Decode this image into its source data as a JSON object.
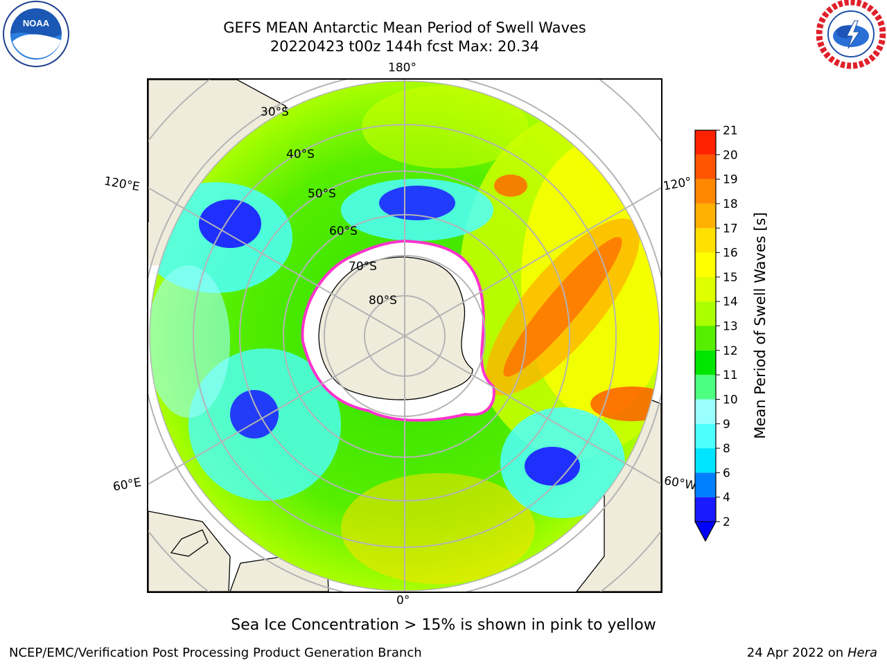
{
  "title_line1": "GEFS MEAN Antarctic Mean Period of Swell Waves",
  "title_line2": "20220423 t00z 144h fcst   Max: 20.34",
  "caption": "Sea Ice Concentration > 15% is shown in pink to yellow",
  "footer_left": "NCEP/EMC/Verification Post Processing Product Generation Branch",
  "footer_right_date": "24 Apr 2022 on",
  "footer_right_host": "Hera",
  "logos": {
    "left": "NOAA",
    "right": "NATIONAL WEATHER SERVICE"
  },
  "map": {
    "projection": "south-polar-stereographic",
    "lon_labels": {
      "top": "180°",
      "bottom": "0°",
      "upper_left": "120°E",
      "upper_right": "120°",
      "lower_left": "60°E",
      "lower_right": "60°W"
    },
    "lat_labels": [
      "30°S",
      "40°S",
      "50°S",
      "60°S",
      "70°S",
      "80°S"
    ],
    "land_color": "#efecdc",
    "ice_edge_color": "#ff33cc"
  },
  "colorbar": {
    "label": "Mean Period of Swell Waves [s]",
    "ticks": [
      "2",
      "4",
      "6",
      "8",
      "9",
      "10",
      "11",
      "12",
      "13",
      "14",
      "15",
      "16",
      "17",
      "18",
      "19",
      "20",
      "21"
    ],
    "colors": [
      "#1a1aff",
      "#0080ff",
      "#00e5ff",
      "#4dffff",
      "#99ffff",
      "#4dff80",
      "#00e600",
      "#55ee00",
      "#aaff00",
      "#ddff00",
      "#ffff00",
      "#ffe000",
      "#ffb000",
      "#ff8800",
      "#ff5500",
      "#ff2200"
    ],
    "extend_color": "#0000ff"
  }
}
